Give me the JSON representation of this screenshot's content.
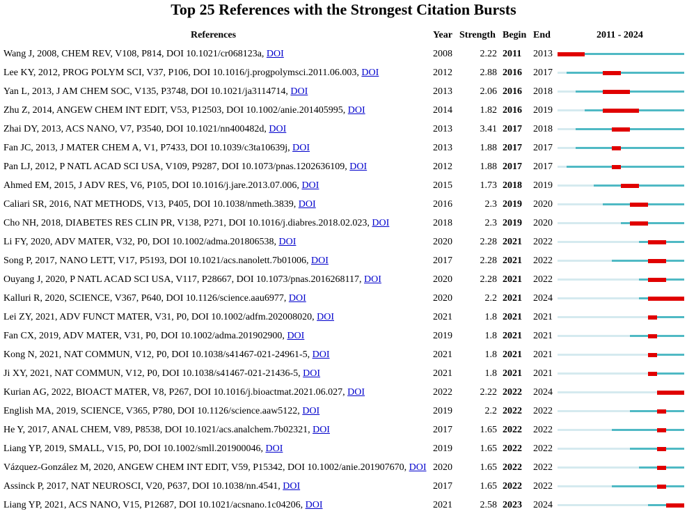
{
  "title": "Top 25 References with the Strongest Citation Bursts",
  "headers": {
    "references": "References",
    "year": "Year",
    "strength": "Strength",
    "begin": "Begin",
    "end": "End",
    "range": "2011 - 2024"
  },
  "timeline_range": [
    2011,
    2024
  ],
  "colors": {
    "burst": "#e00000",
    "active": "#4fb9c4",
    "inactive": "#d5eaef",
    "link": "#0000cc"
  },
  "rows": [
    {
      "ref": "Wang J, 2008, CHEM REV, V108, P814, DOI 10.1021/cr068123a, ",
      "link": "DOI",
      "year": "2008",
      "strength": "2.22",
      "begin": "2011",
      "end": "2013"
    },
    {
      "ref": "Lee KY, 2012, PROG POLYM SCI, V37, P106, DOI 10.1016/j.progpolymsci.2011.06.003, ",
      "link": "DOI",
      "year": "2012",
      "strength": "2.88",
      "begin": "2016",
      "end": "2017"
    },
    {
      "ref": "Yan L, 2013, J AM CHEM SOC, V135, P3748, DOI 10.1021/ja3114714, ",
      "link": "DOI",
      "year": "2013",
      "strength": "2.06",
      "begin": "2016",
      "end": "2018"
    },
    {
      "ref": "Zhu Z, 2014, ANGEW CHEM INT EDIT, V53, P12503, DOI 10.1002/anie.201405995, ",
      "link": "DOI",
      "year": "2014",
      "strength": "1.82",
      "begin": "2016",
      "end": "2019"
    },
    {
      "ref": "Zhai DY, 2013, ACS NANO, V7, P3540, DOI 10.1021/nn400482d, ",
      "link": "DOI",
      "year": "2013",
      "strength": "3.41",
      "begin": "2017",
      "end": "2018"
    },
    {
      "ref": "Fan JC, 2013, J MATER CHEM A, V1, P7433, DOI 10.1039/c3ta10639j, ",
      "link": "DOI",
      "year": "2013",
      "strength": "1.88",
      "begin": "2017",
      "end": "2017"
    },
    {
      "ref": "Pan LJ, 2012, P NATL ACAD SCI USA, V109, P9287, DOI 10.1073/pnas.1202636109, ",
      "link": "DOI",
      "year": "2012",
      "strength": "1.88",
      "begin": "2017",
      "end": "2017"
    },
    {
      "ref": "Ahmed EM, 2015, J ADV RES, V6, P105, DOI 10.1016/j.jare.2013.07.006, ",
      "link": "DOI",
      "year": "2015",
      "strength": "1.73",
      "begin": "2018",
      "end": "2019"
    },
    {
      "ref": "Caliari SR, 2016, NAT METHODS, V13, P405, DOI 10.1038/nmeth.3839, ",
      "link": "DOI",
      "year": "2016",
      "strength": "2.3",
      "begin": "2019",
      "end": "2020"
    },
    {
      "ref": "Cho NH, 2018, DIABETES RES CLIN PR, V138, P271, DOI 10.1016/j.diabres.2018.02.023, ",
      "link": "DOI",
      "year": "2018",
      "strength": "2.3",
      "begin": "2019",
      "end": "2020"
    },
    {
      "ref": "Li FY, 2020, ADV MATER, V32, P0, DOI 10.1002/adma.201806538, ",
      "link": "DOI",
      "year": "2020",
      "strength": "2.28",
      "begin": "2021",
      "end": "2022"
    },
    {
      "ref": "Song P, 2017, NANO LETT, V17, P5193, DOI 10.1021/acs.nanolett.7b01006, ",
      "link": "DOI",
      "year": "2017",
      "strength": "2.28",
      "begin": "2021",
      "end": "2022"
    },
    {
      "ref": "Ouyang J, 2020, P NATL ACAD SCI USA, V117, P28667, DOI 10.1073/pnas.2016268117, ",
      "link": "DOI",
      "year": "2020",
      "strength": "2.28",
      "begin": "2021",
      "end": "2022"
    },
    {
      "ref": "Kalluri R, 2020, SCIENCE, V367, P640, DOI 10.1126/science.aau6977, ",
      "link": "DOI",
      "year": "2020",
      "strength": "2.2",
      "begin": "2021",
      "end": "2024"
    },
    {
      "ref": "Lei ZY, 2021, ADV FUNCT MATER, V31, P0, DOI 10.1002/adfm.202008020, ",
      "link": "DOI",
      "year": "2021",
      "strength": "1.8",
      "begin": "2021",
      "end": "2021"
    },
    {
      "ref": "Fan CX, 2019, ADV MATER, V31, P0, DOI 10.1002/adma.201902900, ",
      "link": "DOI",
      "year": "2019",
      "strength": "1.8",
      "begin": "2021",
      "end": "2021"
    },
    {
      "ref": "Kong N, 2021, NAT COMMUN, V12, P0, DOI 10.1038/s41467-021-24961-5, ",
      "link": "DOI",
      "year": "2021",
      "strength": "1.8",
      "begin": "2021",
      "end": "2021"
    },
    {
      "ref": "Ji XY, 2021, NAT COMMUN, V12, P0, DOI 10.1038/s41467-021-21436-5, ",
      "link": "DOI",
      "year": "2021",
      "strength": "1.8",
      "begin": "2021",
      "end": "2021"
    },
    {
      "ref": "Kurian AG, 2022, BIOACT MATER, V8, P267, DOI 10.1016/j.bioactmat.2021.06.027, ",
      "link": "DOI",
      "year": "2022",
      "strength": "2.22",
      "begin": "2022",
      "end": "2024"
    },
    {
      "ref": "English MA, 2019, SCIENCE, V365, P780, DOI 10.1126/science.aaw5122, ",
      "link": "DOI",
      "year": "2019",
      "strength": "2.2",
      "begin": "2022",
      "end": "2022"
    },
    {
      "ref": "He Y, 2017, ANAL CHEM, V89, P8538, DOI 10.1021/acs.analchem.7b02321, ",
      "link": "DOI",
      "year": "2017",
      "strength": "1.65",
      "begin": "2022",
      "end": "2022"
    },
    {
      "ref": "Liang YP, 2019, SMALL, V15, P0, DOI 10.1002/smll.201900046, ",
      "link": "DOI",
      "year": "2019",
      "strength": "1.65",
      "begin": "2022",
      "end": "2022"
    },
    {
      "ref": "Vázquez-González M, 2020, ANGEW CHEM INT EDIT, V59, P15342, DOI 10.1002/anie.201907670, ",
      "link": "DOI",
      "year": "2020",
      "strength": "1.65",
      "begin": "2022",
      "end": "2022"
    },
    {
      "ref": "Assinck P, 2017, NAT NEUROSCI, V20, P637, DOI 10.1038/nn.4541, ",
      "link": "DOI",
      "year": "2017",
      "strength": "1.65",
      "begin": "2022",
      "end": "2022"
    },
    {
      "ref": "Liang YP, 2021, ACS NANO, V15, P12687, DOI 10.1021/acsnano.1c04206, ",
      "link": "DOI",
      "year": "2021",
      "strength": "2.58",
      "begin": "2023",
      "end": "2024"
    }
  ]
}
